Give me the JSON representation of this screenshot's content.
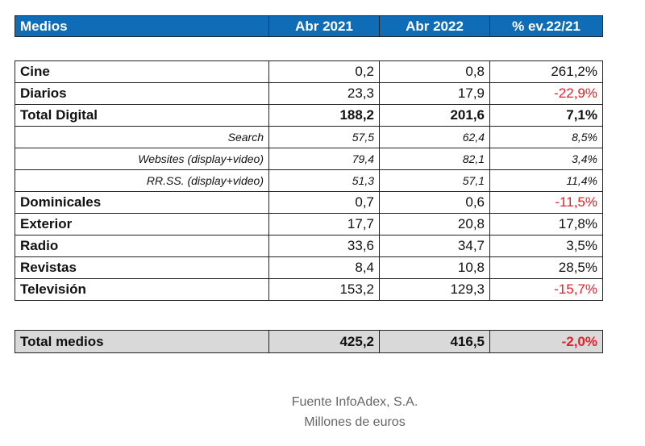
{
  "header": {
    "columns": [
      "Medios",
      "Abr 2021",
      "Abr 2022",
      "% ev.22/21"
    ]
  },
  "rows": [
    {
      "medio": "Cine",
      "a2021": "0,2",
      "a2022": "0,8",
      "ev": "261,2%",
      "type": "main",
      "neg": false
    },
    {
      "medio": "Diarios",
      "a2021": "23,3",
      "a2022": "17,9",
      "ev": "-22,9%",
      "type": "main",
      "neg": true
    },
    {
      "medio": "Total Digital",
      "a2021": "188,2",
      "a2022": "201,6",
      "ev": "7,1%",
      "type": "bold",
      "neg": false
    },
    {
      "medio": "Search",
      "a2021": "57,5",
      "a2022": "62,4",
      "ev": "8,5%",
      "type": "sub",
      "neg": false
    },
    {
      "medio": "Websites (display+video)",
      "a2021": "79,4",
      "a2022": "82,1",
      "ev": "3,4%",
      "type": "sub",
      "neg": false
    },
    {
      "medio": "RR.SS. (display+video)",
      "a2021": "51,3",
      "a2022": "57,1",
      "ev": "11,4%",
      "type": "sub",
      "neg": false
    },
    {
      "medio": "Dominicales",
      "a2021": "0,7",
      "a2022": "0,6",
      "ev": "-11,5%",
      "type": "main",
      "neg": true
    },
    {
      "medio": "Exterior",
      "a2021": "17,7",
      "a2022": "20,8",
      "ev": "17,8%",
      "type": "main",
      "neg": false
    },
    {
      "medio": "Radio",
      "a2021": "33,6",
      "a2022": "34,7",
      "ev": "3,5%",
      "type": "main",
      "neg": false
    },
    {
      "medio": "Revistas",
      "a2021": "8,4",
      "a2022": "10,8",
      "ev": "28,5%",
      "type": "main",
      "neg": false
    },
    {
      "medio": "Televisión",
      "a2021": "153,2",
      "a2022": "129,3",
      "ev": "-15,7%",
      "type": "main",
      "neg": true
    }
  ],
  "total": {
    "medio": "Total medios",
    "a2021": "425,2",
    "a2022": "416,5",
    "ev": "-2,0%"
  },
  "footer": {
    "source": "Fuente InfoAdex, S.A.",
    "units": "Millones de euros"
  },
  "colors": {
    "header": "#0f6db8",
    "negative": "#e8202a",
    "total_bg": "#d9d9d9"
  }
}
